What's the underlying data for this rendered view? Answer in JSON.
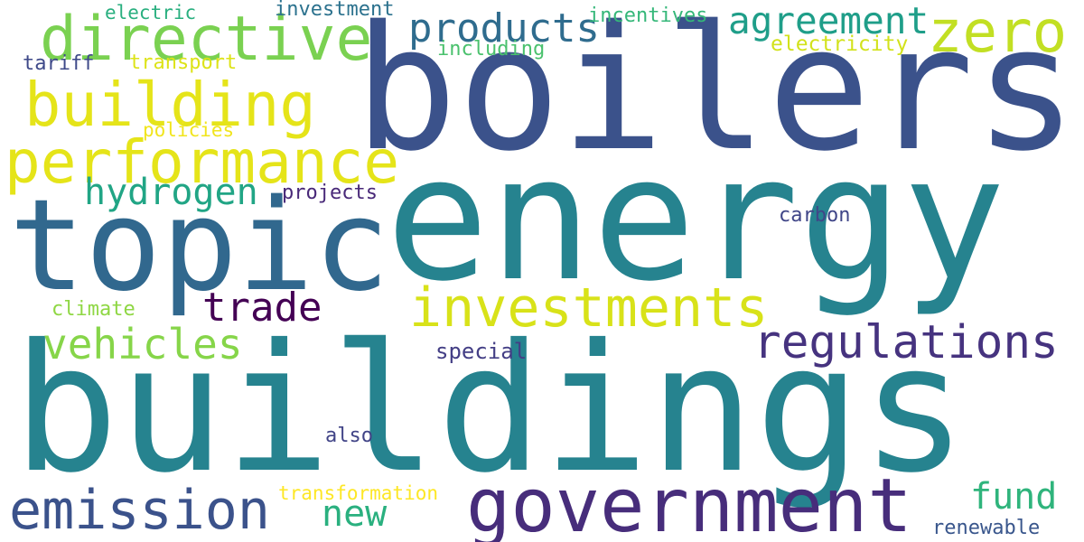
{
  "words": [
    {
      "text": "buildings",
      "color": "#26838f"
    },
    {
      "text": "energy",
      "color": "#26838f"
    },
    {
      "text": "boilers",
      "color": "#3b528b"
    },
    {
      "text": "topic",
      "color": "#31688e"
    },
    {
      "text": "government",
      "color": "#472d7b"
    },
    {
      "text": "directive",
      "color": "#7ad151"
    },
    {
      "text": "performance",
      "color": "#e5e419"
    },
    {
      "text": "building",
      "color": "#e5e419"
    },
    {
      "text": "investments",
      "color": "#d8e219"
    },
    {
      "text": "emission",
      "color": "#3b528b"
    },
    {
      "text": "regulations",
      "color": "#46337f"
    },
    {
      "text": "zero",
      "color": "#c2df23"
    },
    {
      "text": "agreement",
      "color": "#1f9e89"
    },
    {
      "text": "products",
      "color": "#2f6c8e"
    },
    {
      "text": "vehicles",
      "color": "#86d549"
    },
    {
      "text": "hydrogen",
      "color": "#21a585"
    },
    {
      "text": "trade",
      "color": "#440154"
    },
    {
      "text": "new",
      "color": "#2ab07f"
    },
    {
      "text": "fund",
      "color": "#2fb47c"
    },
    {
      "text": "electric",
      "color": "#29af7f"
    },
    {
      "text": "investment",
      "color": "#2c728e"
    },
    {
      "text": "incentives",
      "color": "#35b779"
    },
    {
      "text": "electricity",
      "color": "#d2e21b"
    },
    {
      "text": "including",
      "color": "#4ac16d"
    },
    {
      "text": "tariff",
      "color": "#3e4989"
    },
    {
      "text": "transport",
      "color": "#dde318"
    },
    {
      "text": "policies",
      "color": "#f1e51d"
    },
    {
      "text": "projects",
      "color": "#482878"
    },
    {
      "text": "carbon",
      "color": "#404688"
    },
    {
      "text": "climate",
      "color": "#8fd744"
    },
    {
      "text": "special",
      "color": "#433e85"
    },
    {
      "text": "also",
      "color": "#414487"
    },
    {
      "text": "transformation",
      "color": "#fde725"
    },
    {
      "text": "renewable",
      "color": "#39568c"
    }
  ]
}
